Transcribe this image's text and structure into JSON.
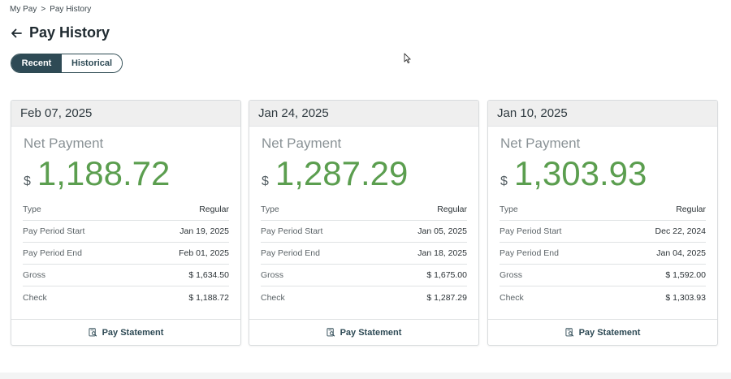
{
  "breadcrumb": {
    "root": "My Pay",
    "separator": ">",
    "current": "Pay History"
  },
  "header": {
    "title": "Pay History",
    "back_icon": "arrow-left-icon"
  },
  "tabs": [
    {
      "label": "Recent",
      "active": true
    },
    {
      "label": "Historical",
      "active": false
    }
  ],
  "colors": {
    "accent": "#2e4a55",
    "amount": "#5b9e4f",
    "card_header_bg": "#efefef"
  },
  "cards": [
    {
      "date": "Feb 07, 2025",
      "net_label": "Net Payment",
      "currency": "$",
      "net_amount": "1,188.72",
      "rows": [
        {
          "label": "Type",
          "value": "Regular"
        },
        {
          "label": "Pay Period Start",
          "value": "Jan 19, 2025"
        },
        {
          "label": "Pay Period End",
          "value": "Feb 01, 2025"
        },
        {
          "label": "Gross",
          "value": "$ 1,634.50"
        },
        {
          "label": "Check",
          "value": "$ 1,188.72"
        }
      ],
      "footer_label": "Pay Statement",
      "footer_icon": "document-search-icon"
    },
    {
      "date": "Jan 24, 2025",
      "net_label": "Net Payment",
      "currency": "$",
      "net_amount": "1,287.29",
      "rows": [
        {
          "label": "Type",
          "value": "Regular"
        },
        {
          "label": "Pay Period Start",
          "value": "Jan 05, 2025"
        },
        {
          "label": "Pay Period End",
          "value": "Jan 18, 2025"
        },
        {
          "label": "Gross",
          "value": "$ 1,675.00"
        },
        {
          "label": "Check",
          "value": "$ 1,287.29"
        }
      ],
      "footer_label": "Pay Statement",
      "footer_icon": "document-search-icon"
    },
    {
      "date": "Jan 10, 2025",
      "net_label": "Net Payment",
      "currency": "$",
      "net_amount": "1,303.93",
      "rows": [
        {
          "label": "Type",
          "value": "Regular"
        },
        {
          "label": "Pay Period Start",
          "value": "Dec 22, 2024"
        },
        {
          "label": "Pay Period End",
          "value": "Jan 04, 2025"
        },
        {
          "label": "Gross",
          "value": "$ 1,592.00"
        },
        {
          "label": "Check",
          "value": "$ 1,303.93"
        }
      ],
      "footer_label": "Pay Statement",
      "footer_icon": "document-search-icon"
    }
  ]
}
